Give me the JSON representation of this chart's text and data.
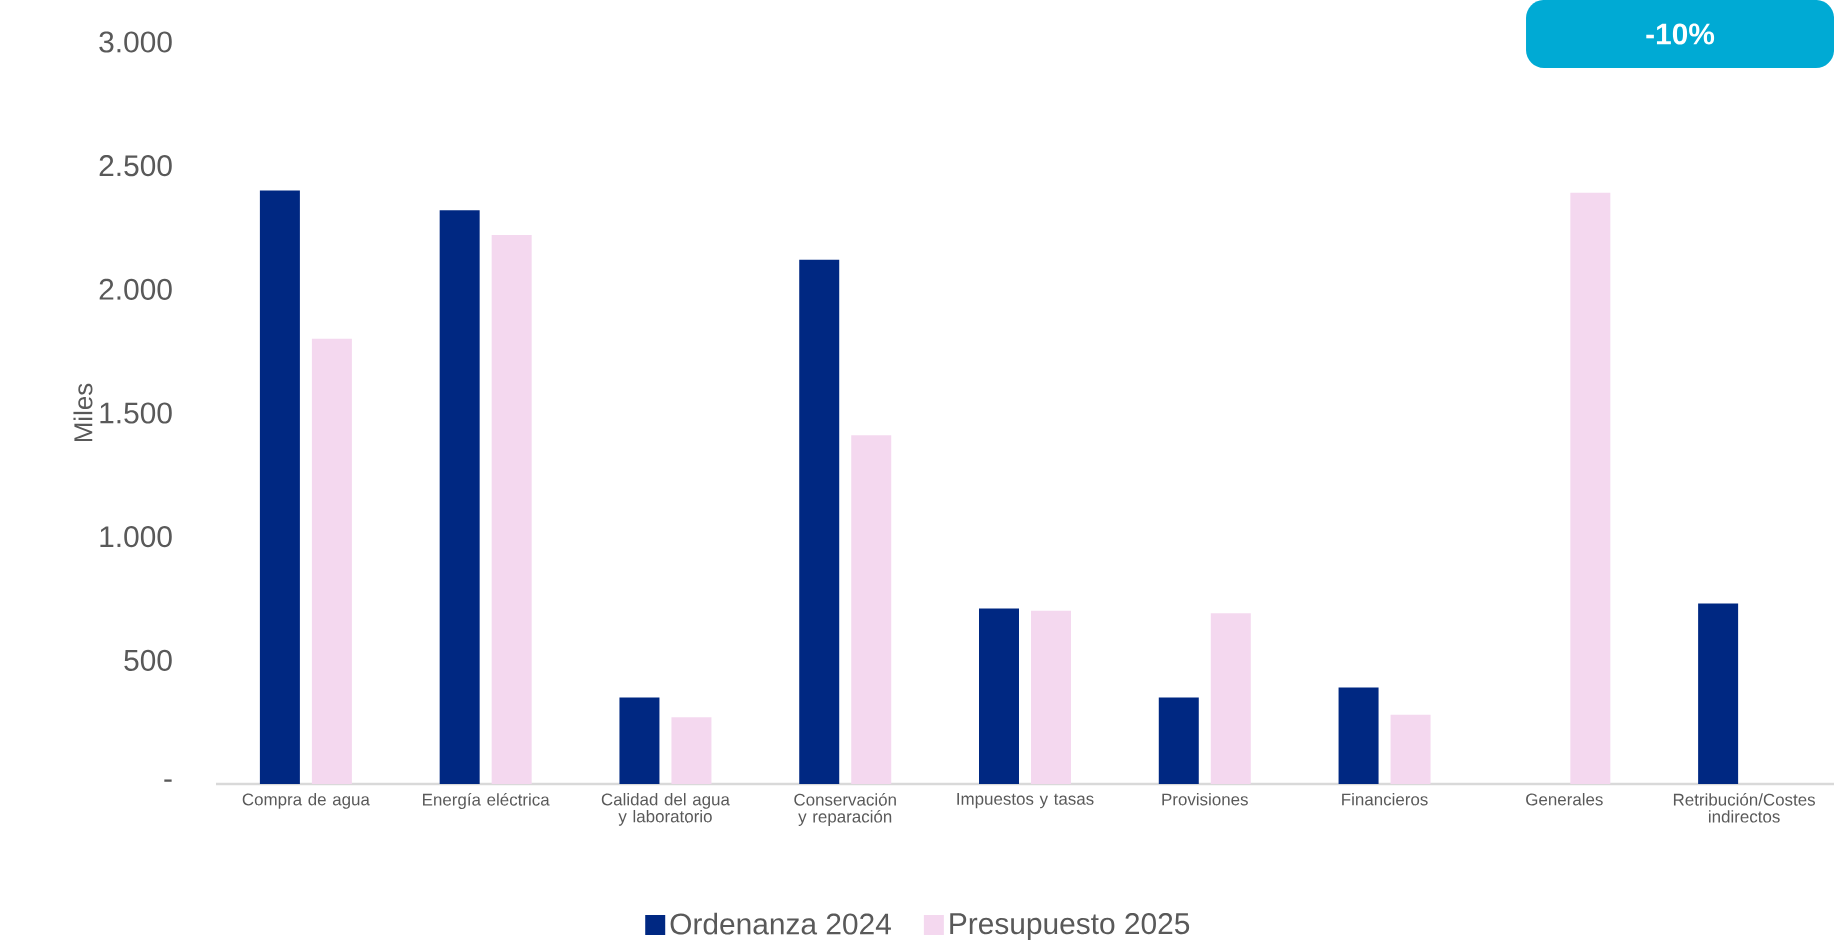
{
  "chart_data": {
    "type": "bar",
    "ylabel": "Miles",
    "categories": [
      "Compra de agua",
      "Energía eléctrica",
      "Calidad del agua y laboratorio",
      "Conservación y reparación",
      "Impuestos y tasas",
      "Provisiones",
      "Financieros",
      "Generales",
      "Retribución/Costes indirectos"
    ],
    "series": [
      {
        "name": "Ordenanza 2024",
        "color": "#002882",
        "values": [
          2400,
          2320,
          350,
          2120,
          710,
          350,
          390,
          null,
          730
        ]
      },
      {
        "name": "Presupuesto 2025",
        "color": "#f4d8ef",
        "values": [
          1800,
          2220,
          270,
          1410,
          700,
          690,
          280,
          2390,
          null
        ]
      }
    ],
    "ylim": [
      0,
      3000
    ],
    "yticks": [
      {
        "value": 0,
        "label": "-"
      },
      {
        "value": 500,
        "label": "500"
      },
      {
        "value": 1000,
        "label": "1.000"
      },
      {
        "value": 1500,
        "label": "1.500"
      },
      {
        "value": 2000,
        "label": "2.000"
      },
      {
        "value": 2500,
        "label": "2.500"
      },
      {
        "value": 3000,
        "label": "3.000"
      }
    ],
    "legend": "bottom",
    "annotations": [
      "-10%"
    ]
  }
}
